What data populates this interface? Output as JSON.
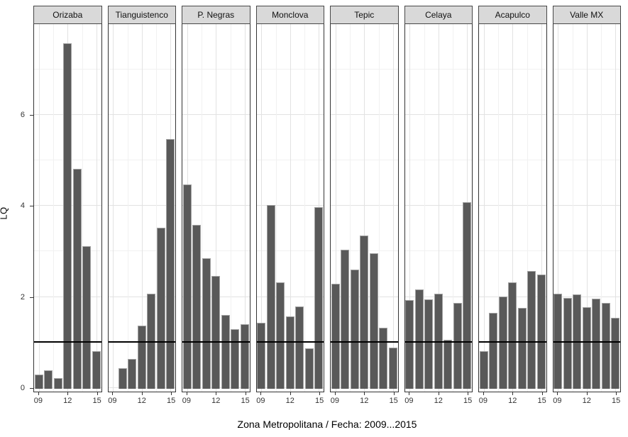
{
  "chart_data": {
    "type": "bar",
    "title": "",
    "xlabel": "Zona Metropolitana / Fecha: 2009...2015",
    "ylabel": "LQ",
    "x": [
      "2009",
      "2010",
      "2011",
      "2012",
      "2013",
      "2014",
      "2015"
    ],
    "x_ticks": [
      {
        "label": "09",
        "year_index": 0
      },
      {
        "label": "12",
        "year_index": 3
      },
      {
        "label": "15",
        "year_index": 6
      }
    ],
    "y_ticks": [
      0,
      2,
      4,
      6
    ],
    "ylim": [
      -0.08,
      7.97
    ],
    "reference_line_y": 1,
    "grid": {
      "major_y": [
        0,
        2,
        4,
        6
      ],
      "minor_y": [
        1,
        3,
        5,
        7
      ],
      "major_x_years": [
        2009,
        2012,
        2015
      ],
      "minor_x_years": [
        2010.5,
        2013.5
      ]
    },
    "legend": "none",
    "bar_color": "#595959",
    "facets": [
      {
        "name": "Orizaba",
        "values": [
          0.28,
          0.38,
          0.2,
          7.55,
          4.8,
          3.1,
          0.8
        ]
      },
      {
        "name": "Tianguistenco",
        "values": [
          0,
          0.42,
          0.62,
          1.35,
          2.05,
          3.5,
          5.45
        ]
      },
      {
        "name": "P. Negras",
        "values": [
          4.45,
          3.56,
          2.84,
          2.44,
          1.59,
          1.28,
          1.38
        ]
      },
      {
        "name": "Monclova",
        "values": [
          1.41,
          4.0,
          2.31,
          1.55,
          1.78,
          0.86,
          3.96
        ]
      },
      {
        "name": "Tepic",
        "values": [
          2.27,
          3.02,
          2.58,
          3.34,
          2.95,
          1.31,
          0.88
        ]
      },
      {
        "name": "Celaya",
        "values": [
          1.92,
          2.15,
          1.93,
          2.06,
          1.05,
          1.85,
          4.07
        ]
      },
      {
        "name": "Acapulco",
        "values": [
          0.8,
          1.63,
          2.0,
          2.3,
          1.74,
          2.55,
          2.47
        ]
      },
      {
        "name": "Valle MX",
        "values": [
          2.05,
          1.96,
          2.04,
          1.76,
          1.95,
          1.86,
          1.52
        ]
      }
    ]
  }
}
